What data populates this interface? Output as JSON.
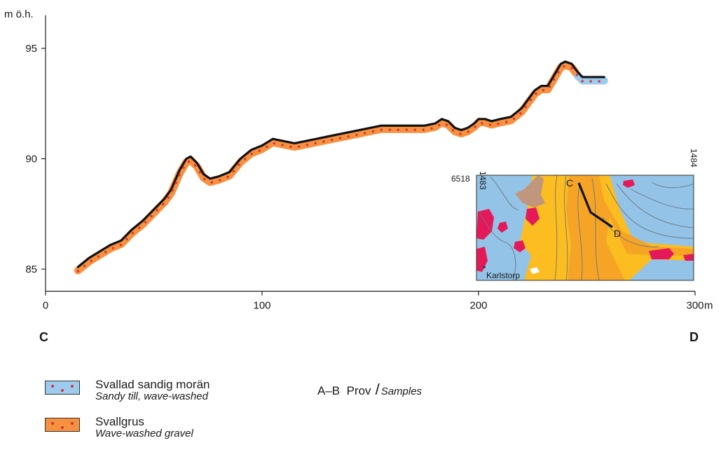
{
  "chart_data": {
    "type": "line",
    "ylabel": "m ö.h.",
    "xunit": "m",
    "x_ticks": [
      0,
      100,
      200,
      300
    ],
    "y_ticks": [
      85,
      90,
      95
    ],
    "xlim": [
      0,
      300
    ],
    "ylim": [
      84,
      96.5
    ],
    "start_label": "C",
    "end_label": "D",
    "profile": {
      "x": [
        15,
        20,
        25,
        30,
        35,
        40,
        45,
        50,
        55,
        58,
        62,
        65,
        67,
        70,
        73,
        76,
        80,
        85,
        90,
        95,
        100,
        105,
        110,
        115,
        120,
        125,
        130,
        135,
        140,
        145,
        150,
        155,
        160,
        165,
        170,
        175,
        180,
        183,
        186,
        189,
        192,
        195,
        198,
        200,
        203,
        206,
        210,
        215,
        220,
        223,
        226,
        229,
        232,
        235,
        238,
        240,
        243,
        246,
        248,
        250,
        253,
        256,
        258
      ],
      "y": [
        85.1,
        85.5,
        85.8,
        86.1,
        86.3,
        86.8,
        87.2,
        87.7,
        88.2,
        88.6,
        89.5,
        90.0,
        90.1,
        89.8,
        89.3,
        89.1,
        89.2,
        89.4,
        90.0,
        90.4,
        90.6,
        90.9,
        90.8,
        90.7,
        90.8,
        90.9,
        91.0,
        91.1,
        91.2,
        91.3,
        91.4,
        91.5,
        91.5,
        91.5,
        91.5,
        91.5,
        91.6,
        91.8,
        91.7,
        91.4,
        91.3,
        91.4,
        91.6,
        91.8,
        91.8,
        91.7,
        91.8,
        91.9,
        92.3,
        92.7,
        93.1,
        93.3,
        93.3,
        93.8,
        94.3,
        94.4,
        94.3,
        93.9,
        93.7,
        93.7,
        93.7,
        93.7,
        93.7
      ],
      "layers": [
        {
          "name": "Svallgrus",
          "from_x": 15,
          "to_x": 246
        },
        {
          "name": "Svallad sandig morän",
          "from_x": 246,
          "to_x": 258
        }
      ]
    }
  },
  "inset_map": {
    "x_labels": [
      "1483",
      "1484"
    ],
    "y_label": "6518",
    "place_label": "Karlstorp",
    "point_c": "C",
    "point_d": "D",
    "colors": {
      "water": "#93c3e6",
      "sand": "#fbbd1f",
      "gravel": "#f5a425",
      "clay": "#c0967c",
      "bedrock": "#e4195a",
      "contour": "#6d7680"
    }
  },
  "legend": [
    {
      "key": "till",
      "label_sv": "Svallad sandig morän",
      "label_en": "Sandy till, wave-washed",
      "color": "#9ccbed",
      "dot_color": "#d9323c"
    },
    {
      "key": "gravel",
      "label_sv": "Svallgrus",
      "label_en": "Wave-washed gravel",
      "color": "#f6923f",
      "dot_color": "#d9323c"
    }
  ],
  "samples": {
    "code": "A–B",
    "label_sv": "Prov",
    "label_en": "Samples"
  }
}
